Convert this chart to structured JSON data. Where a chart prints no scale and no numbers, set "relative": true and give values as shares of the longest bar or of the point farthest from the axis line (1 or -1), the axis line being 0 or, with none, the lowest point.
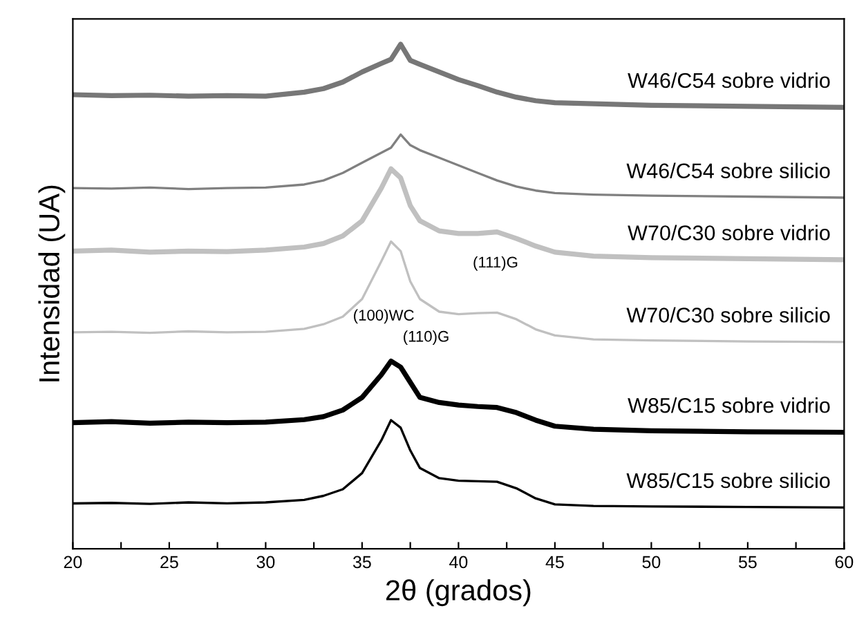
{
  "chart_data": {
    "type": "line",
    "relative": true,
    "xlabel": "2θ (grados)",
    "ylabel": "Intensidad (UA)",
    "x": [
      20,
      22,
      24,
      26,
      28,
      30,
      32,
      33,
      34,
      35,
      36,
      36.5,
      37,
      37.5,
      38,
      39,
      40,
      41,
      42,
      43,
      44,
      45,
      47,
      50,
      55,
      60
    ],
    "xlim": [
      20,
      60
    ],
    "xticks": [
      20,
      {
        "value": 22.5,
        "label": null
      },
      25,
      {
        "value": 27.5,
        "label": null
      },
      30,
      {
        "value": 32.5,
        "label": null
      },
      35,
      {
        "value": 37.5,
        "label": null
      },
      40,
      {
        "value": 42.5,
        "label": null
      },
      45,
      {
        "value": 47.5,
        "label": null
      },
      50,
      {
        "value": 52.5,
        "label": null
      },
      55,
      {
        "value": 57.5,
        "label": null
      },
      60
    ],
    "tick_labels": "x",
    "grid": false,
    "legend": false,
    "marker": "none",
    "line_style": "solid",
    "series": [
      {
        "name": "W46/C54 sobre vidrio",
        "color": "#777777",
        "values": [
          0.9,
          0.898,
          0.899,
          0.897,
          0.898,
          0.897,
          0.905,
          0.912,
          0.925,
          0.945,
          0.962,
          0.97,
          1.0,
          0.968,
          0.96,
          0.945,
          0.93,
          0.918,
          0.905,
          0.895,
          0.888,
          0.884,
          0.882,
          0.879,
          0.877,
          0.875
        ]
      },
      {
        "name": "W46/C54 sobre silicio",
        "color": "#808080",
        "values": [
          0.715,
          0.714,
          0.716,
          0.713,
          0.715,
          0.716,
          0.722,
          0.73,
          0.745,
          0.765,
          0.785,
          0.795,
          0.821,
          0.8,
          0.79,
          0.775,
          0.76,
          0.745,
          0.73,
          0.718,
          0.71,
          0.705,
          0.702,
          0.7,
          0.698,
          0.696
        ]
      },
      {
        "name": "W70/C30 sobre vidrio",
        "color": "#c0c0c0",
        "values": [
          0.59,
          0.592,
          0.588,
          0.59,
          0.589,
          0.592,
          0.598,
          0.605,
          0.62,
          0.65,
          0.715,
          0.753,
          0.735,
          0.68,
          0.65,
          0.63,
          0.625,
          0.625,
          0.628,
          0.615,
          0.6,
          0.588,
          0.58,
          0.577,
          0.575,
          0.573
        ]
      },
      {
        "name": "W70/C30 sobre silicio",
        "color": "#c0c0c0",
        "values": [
          0.429,
          0.43,
          0.428,
          0.431,
          0.429,
          0.43,
          0.436,
          0.445,
          0.46,
          0.495,
          0.57,
          0.609,
          0.59,
          0.53,
          0.495,
          0.47,
          0.465,
          0.467,
          0.468,
          0.455,
          0.435,
          0.423,
          0.415,
          0.413,
          0.411,
          0.41
        ]
      },
      {
        "name": "W85/C15 sobre vidrio",
        "color": "#000000",
        "values": [
          0.25,
          0.252,
          0.249,
          0.251,
          0.25,
          0.251,
          0.256,
          0.262,
          0.275,
          0.3,
          0.345,
          0.372,
          0.36,
          0.33,
          0.3,
          0.29,
          0.285,
          0.282,
          0.28,
          0.27,
          0.255,
          0.243,
          0.237,
          0.234,
          0.232,
          0.231
        ]
      },
      {
        "name": "W85/C15 sobre silicio",
        "color": "#000000",
        "values": [
          0.09,
          0.091,
          0.089,
          0.092,
          0.09,
          0.092,
          0.097,
          0.105,
          0.118,
          0.15,
          0.215,
          0.255,
          0.24,
          0.195,
          0.16,
          0.14,
          0.135,
          0.134,
          0.133,
          0.12,
          0.1,
          0.088,
          0.085,
          0.084,
          0.083,
          0.082
        ]
      }
    ],
    "annotations": [
      "(111)G",
      "(100)WC",
      "(110)G"
    ]
  }
}
